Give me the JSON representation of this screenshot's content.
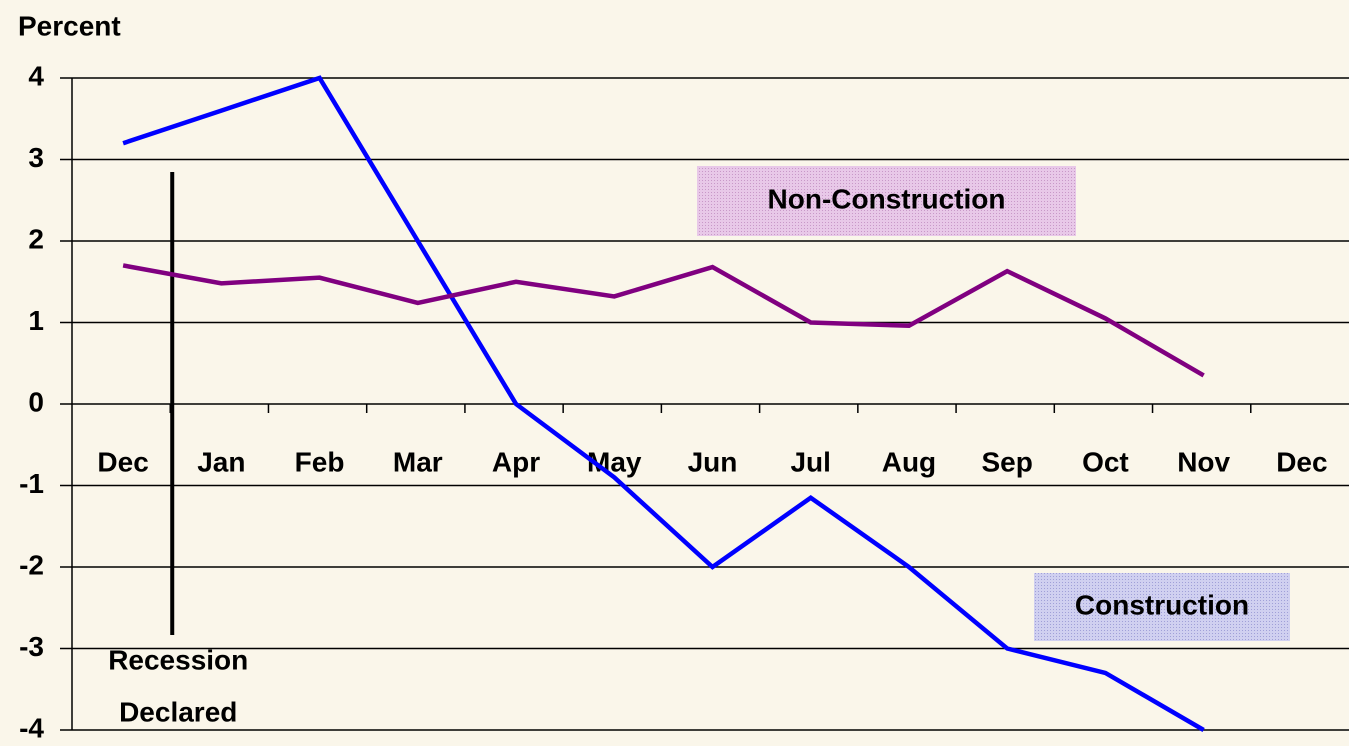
{
  "chart_data": {
    "type": "line",
    "y_label": "Percent",
    "categories": [
      "Dec",
      "Jan",
      "Feb",
      "Mar",
      "Apr",
      "May",
      "Jun",
      "Jul",
      "Aug",
      "Sep",
      "Oct",
      "Nov",
      "Dec"
    ],
    "series": [
      {
        "name": "Construction",
        "color": "#0000ff",
        "values": [
          3.2,
          3.6,
          4.0,
          2.0,
          0.0,
          -0.9,
          -2.0,
          -1.15,
          -2.0,
          -3.0,
          -3.3,
          -4.0,
          null
        ]
      },
      {
        "name": "Non-Construction",
        "color": "#800080",
        "values": [
          1.7,
          1.48,
          1.55,
          1.24,
          1.5,
          1.32,
          1.68,
          1.0,
          0.96,
          1.63,
          1.05,
          0.35,
          null
        ]
      }
    ],
    "ylim": [
      -4,
      4
    ],
    "yticks": [
      -4,
      -3,
      -2,
      -1,
      0,
      1,
      2,
      3,
      4
    ],
    "grid": true,
    "annotations": [
      "Recession",
      "Declared"
    ]
  }
}
